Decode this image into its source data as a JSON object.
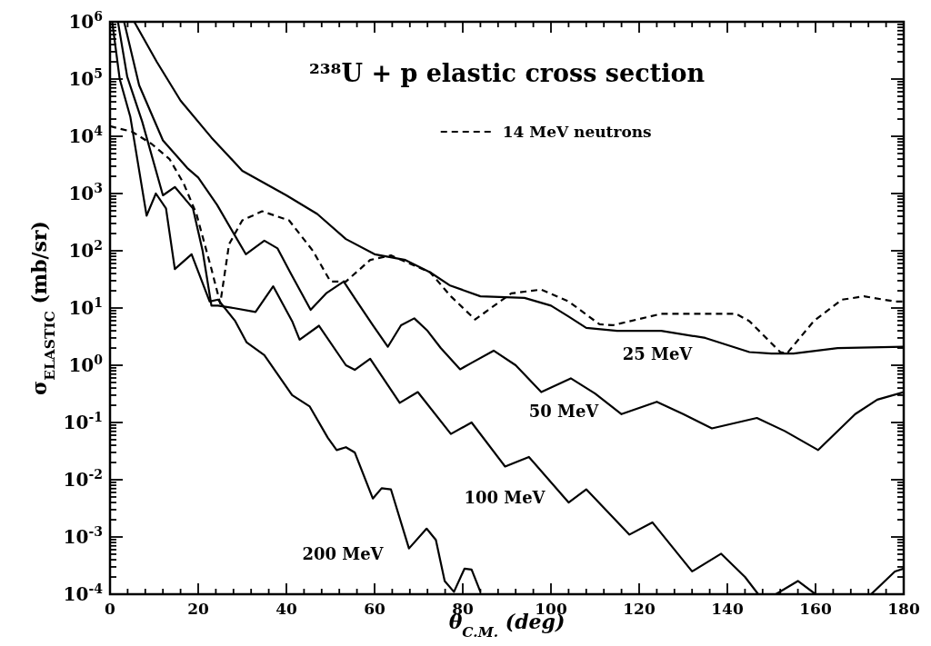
{
  "chart_data": {
    "type": "line",
    "title": "²³⁸U + p    elastic cross section",
    "xlabel": "θ$_{C.M.}$ (deg)",
    "ylabel": "σ$_{ELASTIC}$ (mb/sr)",
    "log": "y",
    "legend": "top right",
    "xlim": [
      0,
      180
    ],
    "ylim": [
      0.0001,
      1000000
    ],
    "xticks": [
      0,
      {
        "value": 4,
        "label": null
      },
      {
        "value": 8,
        "label": null
      },
      {
        "value": 12,
        "label": null
      },
      {
        "value": 16,
        "label": null
      },
      20,
      {
        "value": 24,
        "label": null
      },
      {
        "value": 28,
        "label": null
      },
      {
        "value": 32,
        "label": null
      },
      {
        "value": 36,
        "label": null
      },
      40,
      {
        "value": 44,
        "label": null
      },
      {
        "value": 48,
        "label": null
      },
      {
        "value": 52,
        "label": null
      },
      {
        "value": 56,
        "label": null
      },
      60,
      {
        "value": 64,
        "label": null
      },
      {
        "value": 68,
        "label": null
      },
      {
        "value": 72,
        "label": null
      },
      {
        "value": 76,
        "label": null
      },
      80,
      {
        "value": 84,
        "label": null
      },
      {
        "value": 88,
        "label": null
      },
      {
        "value": 92,
        "label": null
      },
      {
        "value": 96,
        "label": null
      },
      100,
      {
        "value": 104,
        "label": null
      },
      {
        "value": 108,
        "label": null
      },
      {
        "value": 112,
        "label": null
      },
      {
        "value": 116,
        "label": null
      },
      120,
      {
        "value": 124,
        "label": null
      },
      {
        "value": 128,
        "label": null
      },
      {
        "value": 132,
        "label": null
      },
      {
        "value": 136,
        "label": null
      },
      140,
      {
        "value": 144,
        "label": null
      },
      {
        "value": 148,
        "label": null
      },
      {
        "value": 152,
        "label": null
      },
      {
        "value": 156,
        "label": null
      },
      160,
      {
        "value": 164,
        "label": null
      },
      {
        "value": 168,
        "label": null
      },
      {
        "value": 172,
        "label": null
      },
      {
        "value": 176,
        "label": null
      },
      180
    ],
    "yticks": [
      {
        "value": 0.0001,
        "label": "10$^{-4}$"
      },
      {
        "value": 0.0002,
        "label": null
      },
      {
        "value": 0.0003,
        "label": null
      },
      {
        "value": 0.0004,
        "label": null
      },
      {
        "value": 0.0005,
        "label": null
      },
      {
        "value": 0.0006,
        "label": null
      },
      {
        "value": 0.0007,
        "label": null
      },
      {
        "value": 0.0008,
        "label": null
      },
      {
        "value": 0.0009,
        "label": null
      },
      {
        "value": 0.001,
        "label": "10$^{-3}$"
      },
      {
        "value": 0.002,
        "label": null
      },
      {
        "value": 0.003,
        "label": null
      },
      {
        "value": 0.004,
        "label": null
      },
      {
        "value": 0.005,
        "label": null
      },
      {
        "value": 0.006,
        "label": null
      },
      {
        "value": 0.007,
        "label": null
      },
      {
        "value": 0.008,
        "label": null
      },
      {
        "value": 0.009,
        "label": null
      },
      {
        "value": 0.01,
        "label": "10$^{-2}$"
      },
      {
        "value": 0.02,
        "label": null
      },
      {
        "value": 0.03,
        "label": null
      },
      {
        "value": 0.04,
        "label": null
      },
      {
        "value": 0.05,
        "label": null
      },
      {
        "value": 0.06,
        "label": null
      },
      {
        "value": 0.07,
        "label": null
      },
      {
        "value": 0.08,
        "label": null
      },
      {
        "value": 0.09,
        "label": null
      },
      {
        "value": 0.1,
        "label": "10$^{-1}$"
      },
      {
        "value": 0.2,
        "label": null
      },
      {
        "value": 0.3,
        "label": null
      },
      {
        "value": 0.4,
        "label": null
      },
      {
        "value": 0.5,
        "label": null
      },
      {
        "value": 0.6,
        "label": null
      },
      {
        "value": 0.7,
        "label": null
      },
      {
        "value": 0.8,
        "label": null
      },
      {
        "value": 0.9,
        "label": null
      },
      {
        "value": 1,
        "label": "10$^{0}$"
      },
      {
        "value": 2,
        "label": null
      },
      {
        "value": 3,
        "label": null
      },
      {
        "value": 4,
        "label": null
      },
      {
        "value": 5,
        "label": null
      },
      {
        "value": 6,
        "label": null
      },
      {
        "value": 7,
        "label": null
      },
      {
        "value": 8,
        "label": null
      },
      {
        "value": 9,
        "label": null
      },
      {
        "value": 10,
        "label": "10$^{1}$"
      },
      {
        "value": 20,
        "label": null
      },
      {
        "value": 30,
        "label": null
      },
      {
        "value": 40,
        "label": null
      },
      {
        "value": 50,
        "label": null
      },
      {
        "value": 60,
        "label": null
      },
      {
        "value": 70,
        "label": null
      },
      {
        "value": 80,
        "label": null
      },
      {
        "value": 90,
        "label": null
      },
      {
        "value": 100,
        "label": "10$^{2}$"
      },
      {
        "value": 200,
        "label": null
      },
      {
        "value": 300,
        "label": null
      },
      {
        "value": 400,
        "label": null
      },
      {
        "value": 500,
        "label": null
      },
      {
        "value": 600,
        "label": null
      },
      {
        "value": 700,
        "label": null
      },
      {
        "value": 800,
        "label": null
      },
      {
        "value": 900,
        "label": null
      },
      {
        "value": 1000,
        "label": "10$^{3}$"
      },
      {
        "value": 2000,
        "label": null
      },
      {
        "value": 3000,
        "label": null
      },
      {
        "value": 4000,
        "label": null
      },
      {
        "value": 5000,
        "label": null
      },
      {
        "value": 6000,
        "label": null
      },
      {
        "value": 7000,
        "label": null
      },
      {
        "value": 8000,
        "label": null
      },
      {
        "value": 9000,
        "label": null
      },
      {
        "value": 10000.0,
        "label": "10$^{4}$"
      },
      {
        "value": 20000.0,
        "label": null
      },
      {
        "value": 30000.0,
        "label": null
      },
      {
        "value": 40000.0,
        "label": null
      },
      {
        "value": 50000.0,
        "label": null
      },
      {
        "value": 60000.0,
        "label": null
      },
      {
        "value": 70000.0,
        "label": null
      },
      {
        "value": 80000.0,
        "label": null
      },
      {
        "value": 90000.0,
        "label": null
      },
      {
        "value": 100000.0,
        "label": "10$^{5}$"
      },
      {
        "value": 200000.0,
        "label": null
      },
      {
        "value": 300000.0,
        "label": null
      },
      {
        "value": 400000.0,
        "label": null
      },
      {
        "value": 500000.0,
        "label": null
      },
      {
        "value": 600000.0,
        "label": null
      },
      {
        "value": 700000.0,
        "label": null
      },
      {
        "value": 800000.0,
        "label": null
      },
      {
        "value": 900000.0,
        "label": null
      },
      {
        "value": 1000000.0,
        "label": "10$^{6}$"
      }
    ],
    "series": [
      {
        "name": "25 MeV",
        "color": "#000000",
        "line_style": "solid",
        "x": [
          5.5,
          10.6,
          16,
          23,
          30,
          40,
          47,
          53.5,
          60,
          67,
          72.6,
          77,
          84,
          94,
          100,
          104,
          108,
          115,
          125,
          135,
          145,
          150,
          155,
          165,
          180
        ],
        "values": [
          1000000,
          200000,
          42000,
          9500,
          2500,
          930,
          440,
          160,
          87,
          69,
          42,
          25,
          16,
          15,
          11,
          7.1,
          4.5,
          4.0,
          4.0,
          3.0,
          1.7,
          1.6,
          1.6,
          2.0,
          2.1
        ]
      },
      {
        "name": "14 MeV neutrons",
        "color": "#000000",
        "line_style": "dashed",
        "x": [
          0,
          5,
          9.4,
          13.5,
          16.7,
          19.6,
          23,
          25,
          27,
          30,
          34.5,
          40.6,
          46,
          50,
          53.5,
          59,
          63.7,
          72.6,
          77.3,
          82.8,
          91,
          97.8,
          104,
          111,
          114,
          125,
          142,
          145,
          152,
          153.5,
          159.6,
          166,
          171,
          178,
          180
        ],
        "values": [
          15000,
          12000,
          7400,
          4000,
          1500,
          440,
          48,
          12,
          130,
          340,
          490,
          340,
          100,
          29,
          29,
          69,
          83,
          42,
          16,
          6.3,
          18,
          21,
          13,
          5.2,
          5.0,
          7.9,
          7.9,
          5.9,
          1.7,
          1.6,
          5.9,
          14,
          16,
          13,
          13
        ]
      },
      {
        "name": "50 MeV",
        "color": "#000000",
        "line_style": "solid",
        "x": [
          3.2,
          6.6,
          12,
          17.5,
          20,
          24.3,
          28.4,
          30.8,
          35,
          38,
          41,
          45.5,
          49,
          53,
          56,
          59.6,
          63,
          66,
          69,
          72,
          75,
          79.4,
          82,
          87,
          92,
          97.8,
          104.5,
          110,
          116,
          124,
          130,
          136.5,
          146.7,
          153,
          160.6,
          169,
          174,
          180
        ],
        "values": [
          1000000,
          78000,
          8500,
          2800,
          1900,
          630,
          180,
          87,
          150,
          110,
          40,
          9.3,
          18,
          29,
          13,
          5.0,
          2.1,
          5.0,
          6.6,
          4.0,
          2.0,
          0.85,
          1.1,
          1.8,
          1.0,
          0.34,
          0.59,
          0.32,
          0.14,
          0.23,
          0.14,
          0.079,
          0.12,
          0.071,
          0.033,
          0.14,
          0.25,
          0.34
        ]
      },
      {
        "name": "100 MeV",
        "color": "#000000",
        "line_style": "solid",
        "x": [
          1.8,
          3.9,
          7.3,
          12,
          14.7,
          18.8,
          21,
          23,
          24.5,
          28,
          33,
          37,
          41.3,
          43,
          47.4,
          53.5,
          55.5,
          59,
          65.7,
          69.8,
          77.3,
          82,
          89.6,
          95,
          104,
          108,
          117.8,
          123,
          132,
          138.6,
          144,
          147,
          149.5,
          151,
          156,
          160,
          166,
          172.6,
          178,
          180
        ],
        "values": [
          1000000,
          110000,
          18000,
          930,
          1300,
          550,
          100,
          11,
          11,
          10,
          8.5,
          24,
          5.9,
          2.8,
          4.9,
          1.0,
          0.83,
          1.3,
          0.22,
          0.34,
          0.063,
          0.1,
          0.017,
          0.025,
          0.004,
          0.0068,
          0.0011,
          0.0018,
          0.00025,
          0.00051,
          0.0002,
          0.0001,
          null,
          0.0001,
          0.00017,
          0.0001,
          null,
          0.0001,
          0.00025,
          0.00028
        ]
      },
      {
        "name": "200 MeV",
        "color": "#000000",
        "line_style": "solid",
        "x": [
          0.5,
          2.2,
          4.6,
          8.3,
          10.4,
          12.7,
          14.7,
          18.5,
          22.6,
          24.5,
          28.4,
          31,
          35,
          41.3,
          45.3,
          49.4,
          51.4,
          53.5,
          55.5,
          59.6,
          61.6,
          63.7,
          67.8,
          71.8,
          73.9,
          75.9,
          78,
          80.4,
          82,
          84
        ],
        "values": [
          1000000,
          100000,
          22000,
          410,
          1000,
          550,
          48,
          87,
          13,
          14,
          5.9,
          2.5,
          1.5,
          0.3,
          0.19,
          0.054,
          0.033,
          0.037,
          0.03,
          0.0047,
          0.0071,
          0.0068,
          0.00063,
          0.0014,
          0.00089,
          0.00017,
          0.00011,
          0.00028,
          0.00027,
          0.00011
        ]
      }
    ]
  }
}
